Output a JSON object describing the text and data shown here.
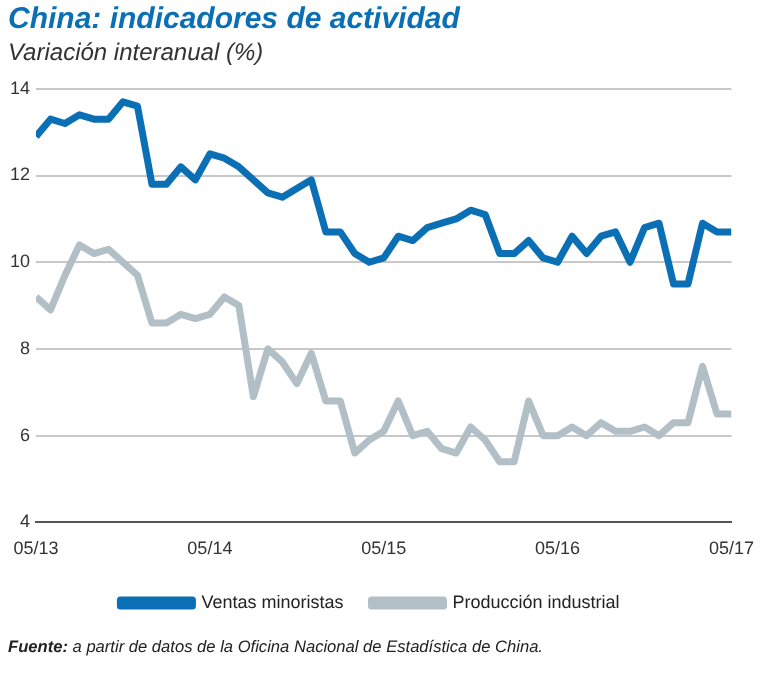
{
  "chart_data": {
    "type": "line",
    "title": "China: indicadores de actividad",
    "subtitle": "Variación interanual (%)",
    "x": [
      "2013-05",
      "2013-06",
      "2013-07",
      "2013-08",
      "2013-09",
      "2013-10",
      "2013-11",
      "2013-12",
      "2014-01",
      "2014-02",
      "2014-03",
      "2014-04",
      "2014-05",
      "2014-06",
      "2014-07",
      "2014-08",
      "2014-09",
      "2014-10",
      "2014-11",
      "2014-12",
      "2015-01",
      "2015-02",
      "2015-03",
      "2015-04",
      "2015-05",
      "2015-06",
      "2015-07",
      "2015-08",
      "2015-09",
      "2015-10",
      "2015-11",
      "2015-12",
      "2016-01",
      "2016-02",
      "2016-03",
      "2016-04",
      "2016-05",
      "2016-06",
      "2016-07",
      "2016-08",
      "2016-09",
      "2016-10",
      "2016-11",
      "2016-12",
      "2017-01",
      "2017-02",
      "2017-03",
      "2017-04",
      "2017-05"
    ],
    "series": [
      {
        "name": "Ventas minoristas",
        "color": "#0a6fb5",
        "values": [
          12.9,
          13.3,
          13.2,
          13.4,
          13.3,
          13.3,
          13.7,
          13.6,
          11.8,
          11.8,
          12.2,
          11.9,
          12.5,
          12.4,
          12.2,
          11.9,
          11.6,
          11.5,
          11.7,
          11.9,
          10.7,
          10.7,
          10.2,
          10.0,
          10.1,
          10.6,
          10.5,
          10.8,
          10.9,
          11.0,
          11.2,
          11.1,
          10.2,
          10.2,
          10.5,
          10.1,
          10.0,
          10.6,
          10.2,
          10.6,
          10.7,
          10.0,
          10.8,
          10.9,
          9.5,
          9.5,
          10.9,
          10.7,
          10.7
        ]
      },
      {
        "name": "Producción industrial",
        "color": "#b2bfc6",
        "values": [
          9.2,
          8.9,
          9.7,
          10.4,
          10.2,
          10.3,
          10.0,
          9.7,
          8.6,
          8.6,
          8.8,
          8.7,
          8.8,
          9.2,
          9.0,
          6.9,
          8.0,
          7.7,
          7.2,
          7.9,
          6.8,
          6.8,
          5.6,
          5.9,
          6.1,
          6.8,
          6.0,
          6.1,
          5.7,
          5.6,
          6.2,
          5.9,
          5.4,
          5.4,
          6.8,
          6.0,
          6.0,
          6.2,
          6.0,
          6.3,
          6.1,
          6.1,
          6.2,
          6.0,
          6.3,
          6.3,
          7.6,
          6.5,
          6.5
        ]
      }
    ],
    "xlim": [
      "2013-05",
      "2017-05"
    ],
    "xticks": [
      {
        "value": "2013-05",
        "label": "05/13"
      },
      {
        "value": "2014-05",
        "label": "05/14"
      },
      {
        "value": "2015-05",
        "label": "05/15"
      },
      {
        "value": "2016-05",
        "label": "05/16"
      },
      {
        "value": "2017-05",
        "label": "05/17"
      }
    ],
    "ylim": [
      4,
      14
    ],
    "yticks": [
      4,
      6,
      8,
      10,
      12,
      14
    ],
    "grid": "y",
    "legend": "bottom",
    "marker": "none",
    "line_style": "solid",
    "annotations": [
      "Fuente: a partir de datos de la Oficina Nacional de Estadística de China."
    ]
  }
}
